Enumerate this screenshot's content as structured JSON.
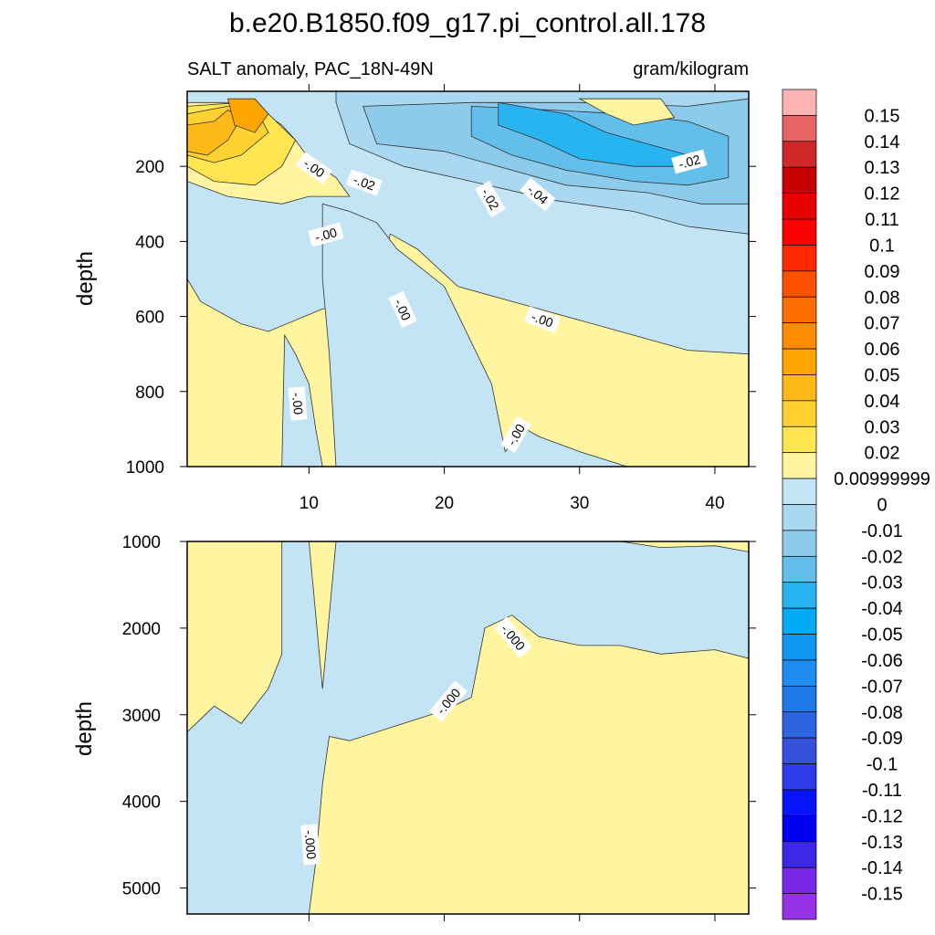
{
  "title": "b.e20.B1850.f09_g17.pi_control.all.178",
  "subtitle_left": "SALT anomaly, PAC_18N-49N",
  "subtitle_right": "gram/kilogram",
  "chart_data": [
    {
      "type": "heatmap",
      "panel": "upper",
      "ylabel": "depth",
      "xlim": [
        1,
        42.5
      ],
      "ylim": [
        1000,
        0
      ],
      "xticks": [
        "10",
        "20",
        "30",
        "40"
      ],
      "yticks": [
        "200",
        "400",
        "600",
        "800",
        "1000"
      ],
      "contour_labels": [
        "-.00",
        "-.02",
        "-.00",
        "-.00",
        "-.00",
        "-.00",
        "-.02",
        "-.04",
        "-.00",
        "-.02"
      ],
      "features": [
        {
          "region": "near-surface, x 1-8",
          "anomaly": "0.01 to 0.05 (positive maximum ~0.05 near x 5, depth 50)"
        },
        {
          "region": "upper 400 m, x 20-42",
          "anomaly": "-0.01 to -0.05 (negative minimum ~-0.05 near x 25-35, depth 100-300)"
        },
        {
          "region": "below 500 m",
          "anomaly": "mostly 0 to 0.01 with -0.01 to 0 columns near x 8 and x 11-24"
        }
      ]
    },
    {
      "type": "heatmap",
      "panel": "lower",
      "ylabel": "depth",
      "xlim": [
        1,
        42.5
      ],
      "ylim": [
        5300,
        1000
      ],
      "yticks": [
        "1000",
        "2000",
        "3000",
        "4000",
        "5000"
      ],
      "contour_labels": [
        "-.000",
        "-.000",
        "-.000"
      ],
      "features": [
        {
          "region": "x 1-8, depth 1000-3200",
          "anomaly": "0 to 0.01"
        },
        {
          "region": "x 8-12, all depths",
          "anomaly": "-0.01 to 0"
        },
        {
          "region": "x 12-42, depth >2100-3200",
          "anomaly": "0 to 0.01"
        },
        {
          "region": "x 12-42, depth 1000-2200",
          "anomaly": "-0.01 to 0"
        }
      ]
    }
  ],
  "colorbar": {
    "labels": [
      "0.15",
      "0.14",
      "0.13",
      "0.12",
      "0.11",
      "0.1",
      "0.09",
      "0.08",
      "0.07",
      "0.06",
      "0.05",
      "0.04",
      "0.03",
      "0.02",
      "0.00999999",
      "0",
      "-0.01",
      "-0.02",
      "-0.03",
      "-0.04",
      "-0.05",
      "-0.06",
      "-0.07",
      "-0.08",
      "-0.09",
      "-0.1",
      "-0.11",
      "-0.12",
      "-0.13",
      "-0.14",
      "-0.15"
    ],
    "colors": [
      "#FFB3B3",
      "#E86464",
      "#D02828",
      "#C80000",
      "#E60000",
      "#FF0000",
      "#FF2800",
      "#FF5000",
      "#FF6E00",
      "#FF8C00",
      "#FFA500",
      "#FFBA19",
      "#FFD232",
      "#FFE650",
      "#FFF5A0",
      "#C2E4F4",
      "#A9D8F0",
      "#8CCBEB",
      "#64BEEB",
      "#28B4F0",
      "#00AAF5",
      "#0F96F0",
      "#1E8CF0",
      "#1E78E6",
      "#2D64E1",
      "#3750DC",
      "#2D3CE6",
      "#0A14FA",
      "#0000F0",
      "#3C28E6",
      "#7828E6",
      "#9632E6"
    ],
    "palette": {
      "light_yellow": "#FFF5A0",
      "light_blue": "#C2E4F4",
      "blue_1": "#A9D8F0",
      "blue_2": "#8CCBEB",
      "blue_3": "#64BEEB",
      "blue_4": "#28B4F0",
      "gold_1": "#FFE650",
      "gold_2": "#FFD232",
      "gold_3": "#FFBA19",
      "gold_4": "#FFA500"
    }
  }
}
